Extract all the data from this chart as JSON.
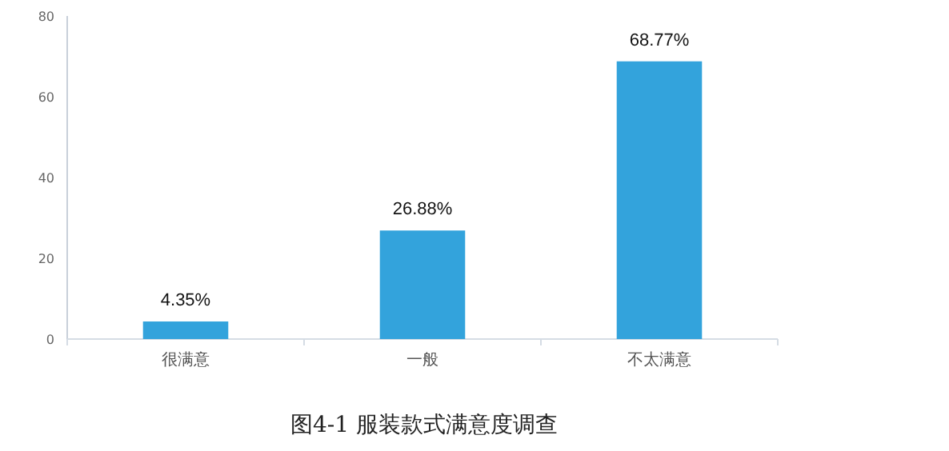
{
  "chart_data": {
    "type": "bar",
    "title": "图4-1 服装款式满意度调查",
    "categories": [
      "很满意",
      "一般",
      "不太满意"
    ],
    "values": [
      4.35,
      26.88,
      68.77
    ],
    "value_labels": [
      "4.35%",
      "26.88%",
      "68.77%"
    ],
    "color": "#33a3dc",
    "ylim": [
      0,
      80
    ],
    "yticks": [
      0,
      20,
      40,
      60,
      80
    ],
    "grid": false
  }
}
